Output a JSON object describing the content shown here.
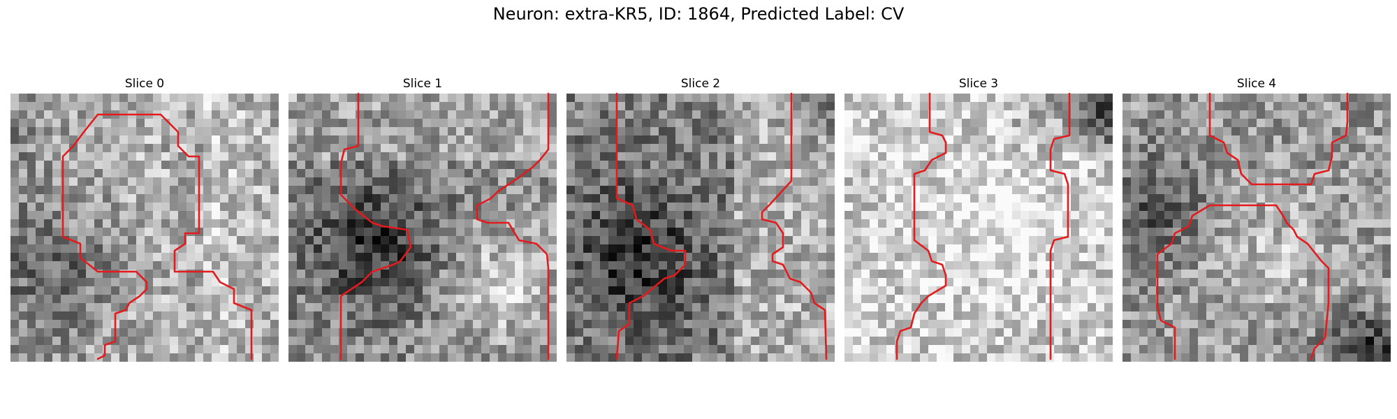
{
  "figure": {
    "title": "Neuron: extra-KR5, ID: 1864, Predicted Label: CV"
  },
  "contour_color": "#e41a1c",
  "colormap": "gray",
  "panels": [
    {
      "title": "Slice 0"
    },
    {
      "title": "Slice 1"
    },
    {
      "title": "Slice 2"
    },
    {
      "title": "Slice 3"
    },
    {
      "title": "Slice 4"
    }
  ]
}
